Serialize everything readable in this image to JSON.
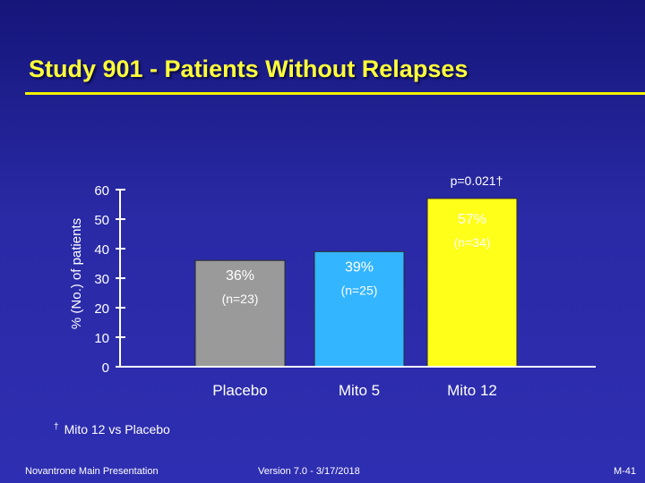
{
  "slide": {
    "title": "Study 901 - Patients Without Relapses",
    "footnote_symbol": "†",
    "footnote_text": "Mito 12 vs Placebo",
    "footer_left": "Novantrone Main Presentation",
    "footer_center": "Version 7.0 - 3/17/2018",
    "footer_right": "M-41"
  },
  "chart_data": {
    "type": "bar",
    "title": "",
    "xlabel": "",
    "ylabel": "% (No.) of patients",
    "ylim": [
      0,
      60
    ],
    "yticks": [
      0,
      10,
      20,
      30,
      40,
      50,
      60
    ],
    "grid": false,
    "categories": [
      "Placebo",
      "Mito 5",
      "Mito 12"
    ],
    "values": [
      36,
      39,
      57
    ],
    "value_labels": [
      "36%",
      "39%",
      "57%"
    ],
    "n_labels": [
      "(n=23)",
      "(n=25)",
      "(n=34)"
    ],
    "bar_colors": [
      "#9a9a9a",
      "#33b5ff",
      "#ffff1a"
    ],
    "annotation": "p=0.021†"
  }
}
